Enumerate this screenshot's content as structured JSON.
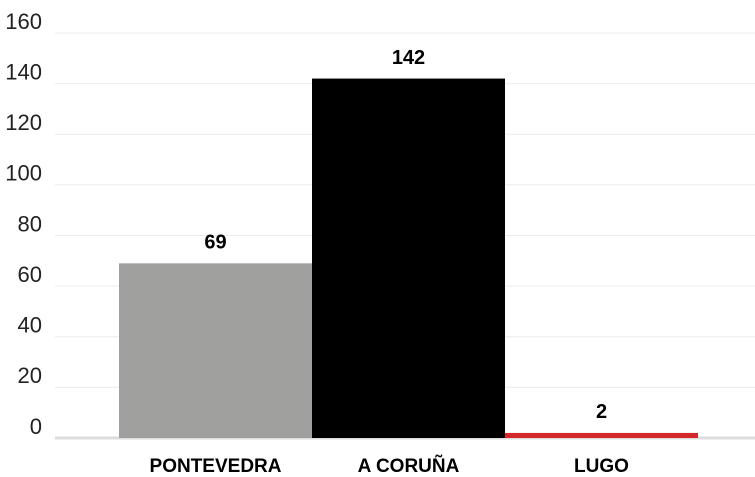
{
  "chart_data": {
    "type": "bar",
    "categories": [
      "PONTEVEDRA",
      "A CORUÑA",
      "LUGO"
    ],
    "values": [
      69,
      142,
      2
    ],
    "colors": [
      "#a0a09e",
      "#000000",
      "#d3272a"
    ],
    "ylim": [
      0,
      160
    ],
    "yticks": [
      0,
      20,
      40,
      60,
      80,
      100,
      120,
      140,
      160
    ],
    "grid": true
  }
}
